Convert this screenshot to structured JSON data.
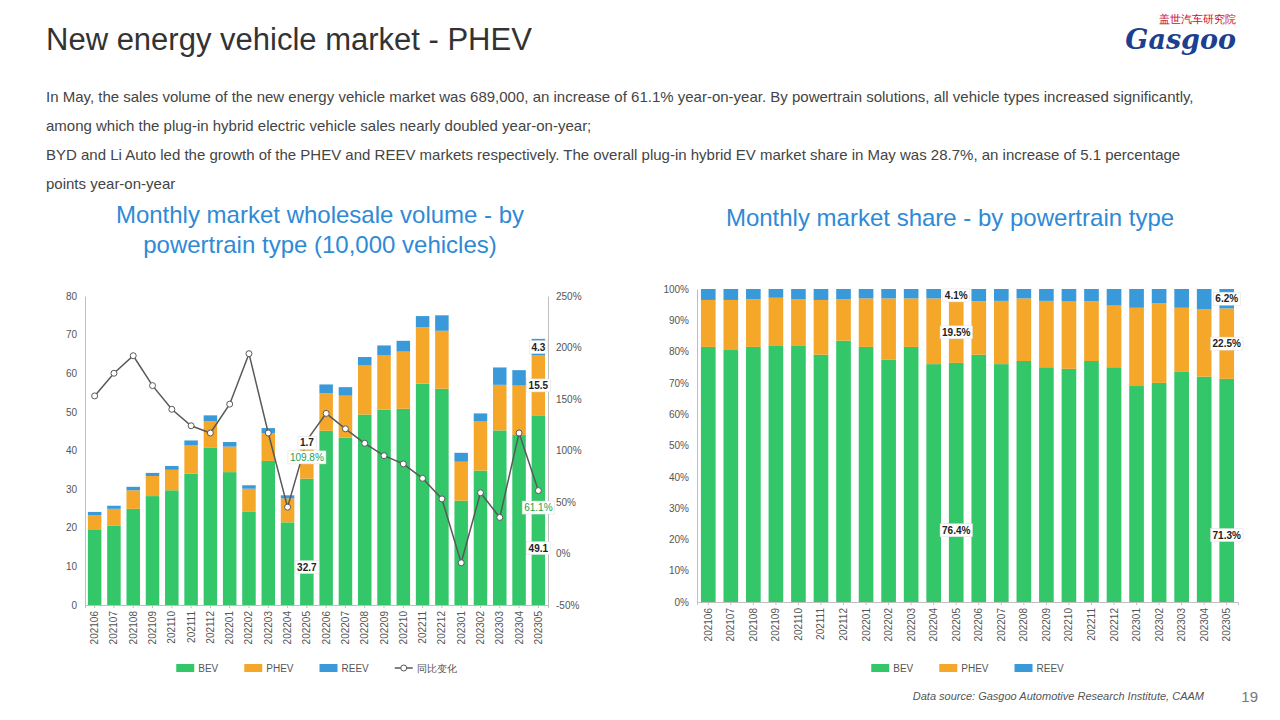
{
  "page": {
    "title": "New energy vehicle market - PHEV",
    "paragraphs": [
      "In May, the sales volume of the new energy vehicle market was 689,000, an increase of 61.1% year-on-year. By powertrain solutions, all vehicle types increased significantly, among which the plug-in hybrid electric vehicle sales nearly doubled year-on-year;",
      "BYD and Li Auto led the growth of the PHEV and REEV markets respectively. The overall plug-in hybrid EV market share in May was 28.7%, an increase of 5.1 percentage points year-on-year"
    ],
    "logo": {
      "name_cn": "盖世汽车研究院",
      "name": "Gasgoo"
    },
    "source": "Data source: Gasgoo Automotive Research Institute, CAAM",
    "page_number": "19"
  },
  "chart_data": [
    {
      "type": "bar",
      "stacked": true,
      "grid": false,
      "legend": "bottom",
      "data_labels": true,
      "title": "Monthly market wholesale volume - by powertrain type (10,000 vehicles)",
      "categories": [
        "202106",
        "202107",
        "202108",
        "202109",
        "202110",
        "202111",
        "202112",
        "202201",
        "202202",
        "202203",
        "202204",
        "202205",
        "202206",
        "202207",
        "202208",
        "202209",
        "202210",
        "202211",
        "202212",
        "202301",
        "202302",
        "202303",
        "202304",
        "202305"
      ],
      "ylim": [
        0,
        80
      ],
      "yticks": [
        0,
        10,
        20,
        30,
        40,
        50,
        60,
        70,
        80
      ],
      "y2lim": [
        -50,
        250
      ],
      "y2ticks": [
        {
          "value": -50,
          "label": "-50%"
        },
        {
          "value": 0,
          "label": "0%"
        },
        {
          "value": 50,
          "label": "50%"
        },
        {
          "value": 100,
          "label": "100%"
        },
        {
          "value": 150,
          "label": "150%"
        },
        {
          "value": 200,
          "label": "200%"
        },
        {
          "value": 250,
          "label": "250%"
        }
      ],
      "series": [
        {
          "name": "BEV",
          "color": "#33c76a",
          "values": [
            19.6,
            20.6,
            24.9,
            28.2,
            29.7,
            34.0,
            40.8,
            34.4,
            24.1,
            37.3,
            21.4,
            32.7,
            45.1,
            43.3,
            49.3,
            50.6,
            50.8,
            57.3,
            56.0,
            27.0,
            34.8,
            45.2,
            44.0,
            49.1
          ],
          "value_labels": [
            null,
            null,
            null,
            null,
            null,
            null,
            null,
            null,
            null,
            null,
            null,
            "32.7",
            null,
            null,
            null,
            null,
            null,
            null,
            null,
            null,
            null,
            null,
            null,
            "49.1"
          ]
        },
        {
          "name": "PHEV",
          "color": "#f5a72a",
          "values": [
            3.7,
            4.3,
            4.8,
            5.2,
            5.3,
            7.3,
            6.8,
            6.6,
            6.0,
            7.2,
            6.2,
            8.4,
            9.7,
            10.9,
            12.7,
            14.0,
            14.8,
            14.6,
            15.0,
            10.1,
            12.7,
            11.8,
            12.8,
            15.5
          ],
          "value_labels": [
            null,
            null,
            null,
            null,
            null,
            null,
            null,
            null,
            null,
            null,
            null,
            null,
            null,
            null,
            null,
            null,
            null,
            null,
            null,
            null,
            null,
            null,
            null,
            "15.5"
          ]
        },
        {
          "name": "REEV",
          "color": "#3a9ad9",
          "values": [
            0.8,
            0.8,
            0.9,
            0.8,
            1.0,
            1.3,
            1.5,
            1.2,
            0.9,
            1.3,
            0.8,
            1.7,
            2.3,
            2.2,
            2.2,
            2.6,
            2.8,
            2.9,
            4.0,
            2.3,
            2.1,
            4.5,
            4.0,
            4.3
          ],
          "value_labels": [
            null,
            null,
            null,
            null,
            null,
            null,
            null,
            null,
            null,
            null,
            null,
            "1.7",
            null,
            null,
            null,
            null,
            null,
            null,
            null,
            null,
            null,
            null,
            null,
            "4.3"
          ]
        },
        {
          "name": "同比变化",
          "type": "line",
          "axis": "y2",
          "color": "#595959",
          "marker": "circle",
          "values": [
            153,
            175,
            192,
            163,
            140,
            124,
            117,
            145,
            194,
            117,
            45,
            109.8,
            136,
            121,
            107,
            95,
            87,
            73,
            53,
            -9,
            59,
            35,
            117,
            61.1
          ],
          "value_labels": [
            null,
            null,
            null,
            null,
            null,
            null,
            null,
            null,
            null,
            null,
            null,
            "109.8%",
            null,
            null,
            null,
            null,
            null,
            null,
            null,
            null,
            null,
            null,
            null,
            "61.1%"
          ]
        }
      ]
    },
    {
      "type": "bar",
      "stacked": true,
      "grid": false,
      "legend": "bottom",
      "data_labels": true,
      "title": "Monthly market share - by powertrain type",
      "categories": [
        "202106",
        "202107",
        "202108",
        "202109",
        "202110",
        "202111",
        "202112",
        "202201",
        "202202",
        "202203",
        "202204",
        "202205",
        "202206",
        "202207",
        "202208",
        "202209",
        "202210",
        "202211",
        "202212",
        "202301",
        "202302",
        "202303",
        "202304",
        "202305"
      ],
      "ylim": [
        0,
        100
      ],
      "yticks": [
        {
          "value": 0,
          "label": "0%"
        },
        {
          "value": 10,
          "label": "10%"
        },
        {
          "value": 20,
          "label": "20%"
        },
        {
          "value": 30,
          "label": "30%"
        },
        {
          "value": 40,
          "label": "40%"
        },
        {
          "value": 50,
          "label": "50%"
        },
        {
          "value": 60,
          "label": "60%"
        },
        {
          "value": 70,
          "label": "70%"
        },
        {
          "value": 80,
          "label": "80%"
        },
        {
          "value": 90,
          "label": "90%"
        },
        {
          "value": 100,
          "label": "100%"
        }
      ],
      "series": [
        {
          "name": "BEV",
          "color": "#33c76a",
          "values": [
            81.5,
            80.5,
            81.5,
            82.0,
            82.0,
            79.0,
            83.5,
            81.5,
            77.5,
            81.5,
            76.0,
            76.4,
            79.0,
            76.0,
            77.0,
            75.0,
            74.5,
            77.0,
            75.0,
            69.0,
            70.0,
            73.5,
            72.0,
            71.3
          ],
          "value_labels": [
            null,
            null,
            null,
            null,
            null,
            null,
            null,
            null,
            null,
            null,
            null,
            "76.4%",
            null,
            null,
            null,
            null,
            null,
            null,
            null,
            null,
            null,
            null,
            null,
            "71.3%"
          ]
        },
        {
          "name": "PHEV",
          "color": "#f5a72a",
          "values": [
            15.0,
            16.0,
            15.2,
            15.2,
            14.8,
            17.5,
            13.2,
            15.5,
            19.5,
            15.5,
            21.0,
            19.5,
            17.1,
            20.2,
            20.0,
            21.2,
            21.5,
            19.1,
            19.7,
            25.0,
            25.5,
            20.5,
            21.5,
            22.5
          ],
          "value_labels": [
            null,
            null,
            null,
            null,
            null,
            null,
            null,
            null,
            null,
            null,
            null,
            "19.5%",
            null,
            null,
            null,
            null,
            null,
            null,
            null,
            null,
            null,
            null,
            null,
            "22.5%"
          ]
        },
        {
          "name": "REEV",
          "color": "#3a9ad9",
          "values": [
            3.5,
            3.5,
            3.3,
            2.8,
            3.2,
            3.5,
            3.3,
            3.0,
            3.0,
            3.0,
            3.0,
            4.1,
            3.9,
            3.8,
            3.0,
            3.8,
            4.0,
            3.9,
            5.3,
            6.0,
            4.5,
            6.0,
            6.5,
            6.2
          ],
          "value_labels": [
            null,
            null,
            null,
            null,
            null,
            null,
            null,
            null,
            null,
            null,
            null,
            "4.1%",
            null,
            null,
            null,
            null,
            null,
            null,
            null,
            null,
            null,
            null,
            null,
            "6.2%"
          ]
        }
      ]
    }
  ]
}
